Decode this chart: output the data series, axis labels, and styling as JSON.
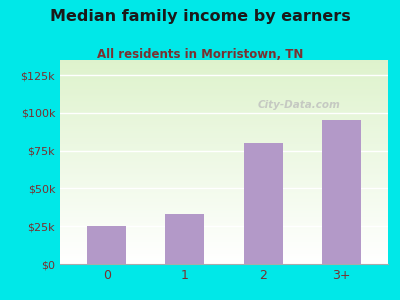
{
  "categories": [
    "0",
    "1",
    "2",
    "3+"
  ],
  "values": [
    25000,
    33000,
    80000,
    95000
  ],
  "bar_color": "#b399c8",
  "title": "Median family income by earners",
  "subtitle": "All residents in Morristown, TN",
  "title_color": "#1a1a1a",
  "subtitle_color": "#7a3030",
  "background_color": "#00e8e8",
  "yticks": [
    0,
    25000,
    50000,
    75000,
    100000,
    125000
  ],
  "ytick_labels": [
    "$0",
    "$25k",
    "$50k",
    "$75k",
    "$100k",
    "$125k"
  ],
  "ylim": [
    0,
    135000
  ],
  "tick_color": "#7a3030",
  "watermark": "City-Data.com"
}
